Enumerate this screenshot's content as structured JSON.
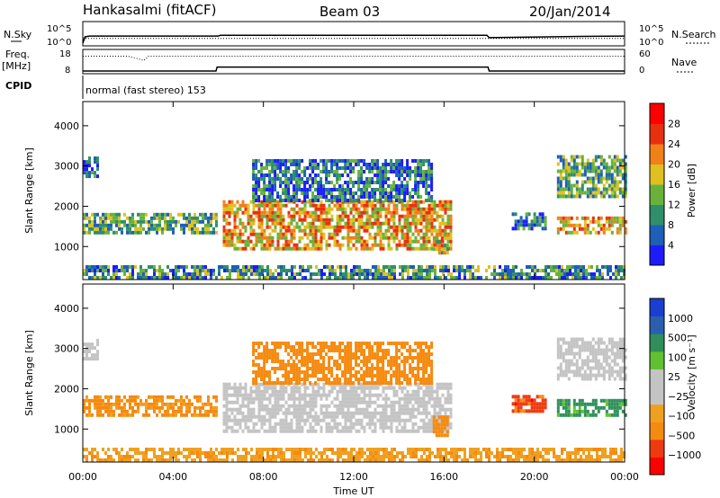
{
  "header": {
    "station": "Hankasalmi (fitACF)",
    "beam": "Beam 03",
    "date": "20/Jan/2014"
  },
  "side_labels": {
    "nsky": "N.Sky",
    "nsearch": "N.Search",
    "freq": "Freq.",
    "freq_unit": "[MHz]",
    "nave": "Nave",
    "cpid": "CPID"
  },
  "mode_text": "normal (fast stereo) 153",
  "chart_data": [
    {
      "type": "line",
      "name": "noise-panel",
      "ylabels_left": [
        "10^5",
        "10^0"
      ],
      "ylabels_right": [
        "10^5",
        "10^0"
      ],
      "series": [
        {
          "name": "N.Sky",
          "x_hours": [
            0,
            0.1,
            0.3,
            4,
            6,
            6.1,
            12,
            17.9,
            18,
            22,
            24
          ],
          "log_values": [
            0,
            1.6,
            1.8,
            1.8,
            1.8,
            2.0,
            2.0,
            2.0,
            1.4,
            1.7,
            1.8
          ]
        },
        {
          "name": "N.Search",
          "x_hours": [
            0,
            24
          ],
          "log_values": [
            1.2,
            1.2
          ]
        }
      ]
    },
    {
      "type": "line",
      "name": "freq-nave-panel",
      "yticks_left": [
        "18",
        "8"
      ],
      "yticks_right": [
        "60",
        "0"
      ],
      "series": [
        {
          "name": "Freq.",
          "x_hours": [
            0,
            5.9,
            5.95,
            17.95,
            18,
            24
          ],
          "values": [
            8,
            8,
            10,
            10,
            8,
            8
          ]
        },
        {
          "name": "Nave",
          "x_hours": [
            0,
            2.0,
            2.4,
            2.7,
            2.9,
            24
          ],
          "values": [
            45,
            45,
            38,
            32,
            45,
            45
          ]
        }
      ]
    },
    {
      "type": "heatmap",
      "name": "power",
      "ylabel": "Slant Range [km]",
      "yticks": [
        "1000",
        "2000",
        "3000",
        "4000"
      ],
      "ylim": [
        180,
        4600
      ],
      "xlim": [
        0,
        24
      ],
      "colorbar_label": "Power [dB]",
      "colorbar_ticks": [
        "4",
        "8",
        "12",
        "16",
        "20",
        "24",
        "28"
      ],
      "colors": [
        "#1c1cff",
        "#1e5fb8",
        "#2f8f6a",
        "#68b23c",
        "#e0c020",
        "#f08018",
        "#e83010",
        "#ff0000"
      ],
      "regions": [
        {
          "t0": 0.0,
          "t1": 5.9,
          "r0": 1300,
          "r1": 1800,
          "mean": 14
        },
        {
          "t0": 0.0,
          "t1": 0.6,
          "r0": 2700,
          "r1": 3200,
          "mean": 8
        },
        {
          "t0": 6.2,
          "t1": 16.3,
          "r0": 900,
          "r1": 2100,
          "mean": 22
        },
        {
          "t0": 7.5,
          "t1": 15.5,
          "r0": 2100,
          "r1": 3100,
          "mean": 10
        },
        {
          "t0": 15.5,
          "t1": 16.2,
          "r0": 800,
          "r1": 1300,
          "mean": 20
        },
        {
          "t0": 19.0,
          "t1": 20.5,
          "r0": 1400,
          "r1": 1800,
          "mean": 10
        },
        {
          "t0": 21.0,
          "t1": 24.0,
          "r0": 1300,
          "r1": 1700,
          "mean": 22
        },
        {
          "t0": 21.0,
          "t1": 24.0,
          "r0": 2200,
          "r1": 3200,
          "mean": 14
        },
        {
          "t0": 0.0,
          "t1": 24.0,
          "r0": 180,
          "r1": 500,
          "mean": 12
        }
      ]
    },
    {
      "type": "heatmap",
      "name": "velocity",
      "ylabel": "Slant Range [km]",
      "yticks": [
        "1000",
        "2000",
        "3000",
        "4000"
      ],
      "ylim": [
        180,
        4600
      ],
      "xlim": [
        0,
        24
      ],
      "colorbar_label": "Velocity [m s⁻¹]",
      "colorbar_ticks": [
        "1000",
        "500",
        "100",
        "25",
        "−25",
        "−100",
        "−500",
        "−1000"
      ],
      "colors": [
        "#ff0000",
        "#ee3a10",
        "#f58a10",
        "#f0a020",
        "#c4c4c4",
        "#c4c4c4",
        "#60c030",
        "#2e8f5a",
        "#2a5fb0",
        "#1a3fd0"
      ],
      "regions": [
        {
          "t0": 0.0,
          "t1": 5.9,
          "r0": 1300,
          "r1": 1800,
          "mean": -150
        },
        {
          "t0": 0.0,
          "t1": 0.6,
          "r0": 2700,
          "r1": 3200,
          "mean": 0
        },
        {
          "t0": 6.2,
          "t1": 16.3,
          "r0": 900,
          "r1": 2100,
          "mean": 0
        },
        {
          "t0": 7.5,
          "t1": 15.5,
          "r0": 2100,
          "r1": 3100,
          "mean": -300
        },
        {
          "t0": 15.5,
          "t1": 16.2,
          "r0": 800,
          "r1": 1300,
          "mean": -300
        },
        {
          "t0": 19.0,
          "t1": 20.5,
          "r0": 1400,
          "r1": 1800,
          "mean": -700
        },
        {
          "t0": 21.0,
          "t1": 24.0,
          "r0": 1300,
          "r1": 1700,
          "mean": 150
        },
        {
          "t0": 21.0,
          "t1": 24.0,
          "r0": 2200,
          "r1": 3200,
          "mean": 0
        },
        {
          "t0": 0.0,
          "t1": 24.0,
          "r0": 180,
          "r1": 500,
          "mean": -80
        }
      ]
    }
  ],
  "x_axis": {
    "ticks": [
      "00:00",
      "04:00",
      "08:00",
      "12:00",
      "16:00",
      "20:00",
      "00:00"
    ],
    "label": "Time UT"
  }
}
